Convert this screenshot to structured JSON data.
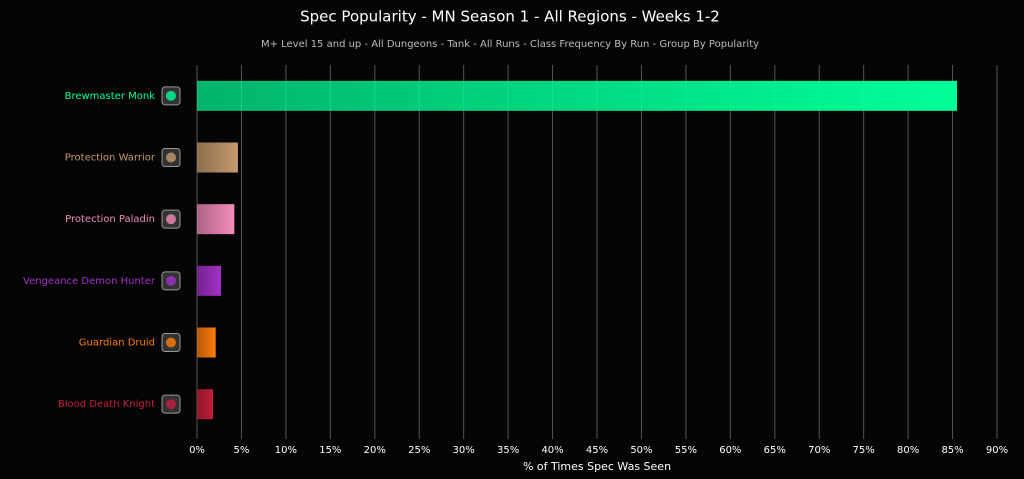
{
  "chart_data": {
    "type": "hbar",
    "title": "Spec Popularity - MN Season 1 - All Regions - Weeks 1-2",
    "subtitle": "M+ Level 15 and up - All Dungeons - Tank - All Runs - Class Frequency By Run - Group By Popularity",
    "x_label": "% of Times Spec Was Seen",
    "categories": [
      "Brewmaster Monk",
      "Protection Warrior",
      "Protection Paladin",
      "Vengeance Demon Hunter",
      "Guardian Druid",
      "Blood Death Knight"
    ],
    "values": [
      85.5,
      4.6,
      4.2,
      2.7,
      2.1,
      1.8
    ],
    "colors": [
      "#00ff98",
      "#c69b6d",
      "#f48cba",
      "#a330c9",
      "#ff7c0a",
      "#c41e3a"
    ],
    "xlim": [
      0,
      90
    ],
    "xticks": [
      {
        "value": 0,
        "label": "0%"
      },
      {
        "value": 5,
        "label": "5%"
      },
      {
        "value": 10,
        "label": "10%"
      },
      {
        "value": 15,
        "label": "15%"
      },
      {
        "value": 20,
        "label": "20%"
      },
      {
        "value": 25,
        "label": "25%"
      },
      {
        "value": 30,
        "label": "30%"
      },
      {
        "value": 35,
        "label": "35%"
      },
      {
        "value": 40,
        "label": "40%"
      },
      {
        "value": 45,
        "label": "45%"
      },
      {
        "value": 50,
        "label": "50%"
      },
      {
        "value": 55,
        "label": "55%"
      },
      {
        "value": 60,
        "label": "60%"
      },
      {
        "value": 65,
        "label": "65%"
      },
      {
        "value": 70,
        "label": "70%"
      },
      {
        "value": 75,
        "label": "75%"
      },
      {
        "value": 80,
        "label": "80%"
      },
      {
        "value": 85,
        "label": "85%"
      },
      {
        "value": 90,
        "label": "90%"
      }
    ],
    "grid": true
  }
}
